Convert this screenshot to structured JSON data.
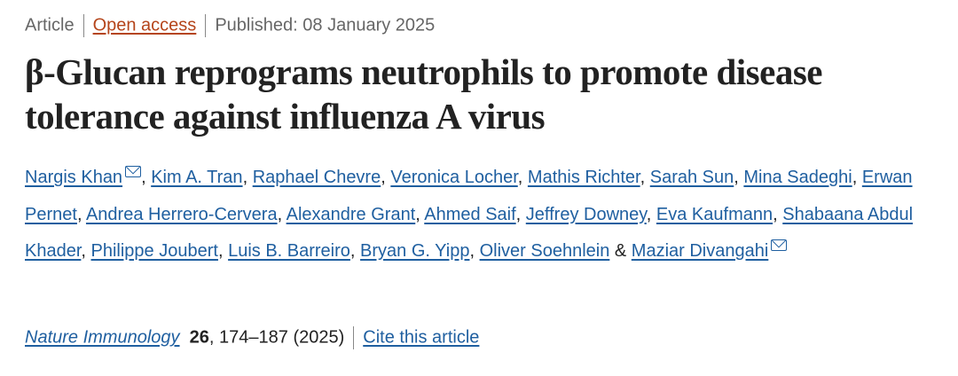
{
  "meta": {
    "type": "Article",
    "access": "Open access",
    "published": "Published: 08 January 2025"
  },
  "title": "β-Glucan reprograms neutrophils to promote disease tolerance against influenza A virus",
  "authors": [
    "Nargis Khan",
    "Kim A. Tran",
    "Raphael Chevre",
    "Veronica Locher",
    "Mathis Richter",
    "Sarah Sun",
    "Mina Sadeghi",
    "Erwan Pernet",
    "Andrea Herrero-Cervera",
    "Alexandre Grant",
    "Ahmed Saif",
    "Jeffrey Downey",
    "Eva Kaufmann",
    "Shabaana Abdul Khader",
    "Philippe Joubert",
    "Luis B. Barreiro",
    "Bryan G. Yipp",
    "Oliver Soehnlein",
    "Maziar Divangahi"
  ],
  "corresponding_icon": "envelope-icon",
  "citation": {
    "journal": "Nature Immunology",
    "volume": "26",
    "pages": ", 174–187 (2025)",
    "cite_label": "Cite this article"
  },
  "colors": {
    "link": "#1f5fa0",
    "open_access": "#b5451b",
    "text": "#222222"
  }
}
